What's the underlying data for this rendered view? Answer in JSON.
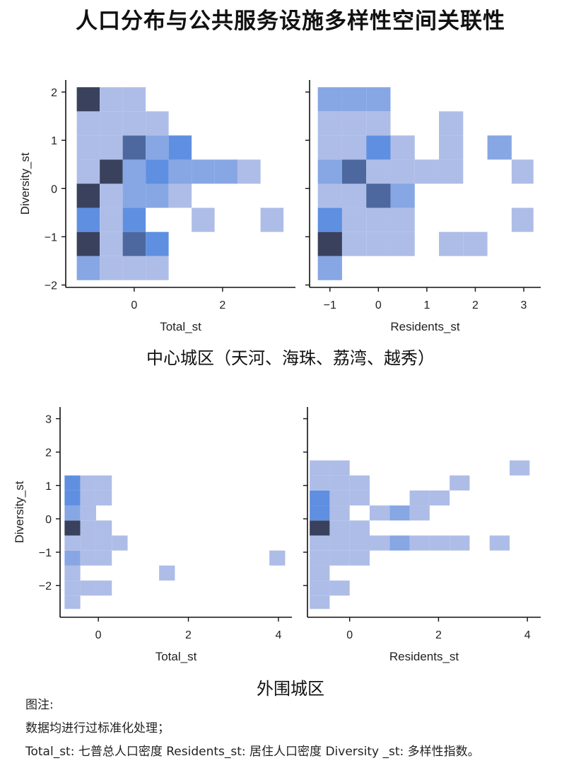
{
  "title": "人口分布与公共服务设施多样性空间关联性",
  "groups": [
    {
      "caption": "中心城区（天河、海珠、荔湾、越秀）"
    },
    {
      "caption": "外围城区"
    }
  ],
  "notes": {
    "heading": "图注:",
    "line1": "数据均进行过标准化处理；",
    "line2": "Total_st: 七普总人口密度   Residents_st: 居住人口密度   Diversity _st: 多样性指数。"
  },
  "colors": {
    "cmap_light": "#aebde7",
    "cmap_mid": "#5f8fe0",
    "cmap_dark": "#39415c",
    "axis": "#111111"
  },
  "chart_data": [
    {
      "type": "heatmap",
      "panel": "central-total",
      "xlabel": "Total_st",
      "ylabel": "Diversity_st",
      "xticks": [
        0,
        2
      ],
      "yticks": [
        -2,
        -1,
        0,
        1,
        2
      ],
      "xlim": [
        -1.55,
        3.65
      ],
      "ylim": [
        -2.05,
        2.25
      ],
      "x_edges": [
        -1.3,
        -0.78,
        -0.26,
        0.26,
        0.78,
        1.3,
        1.82,
        2.34,
        2.86,
        3.38
      ],
      "y_edges": [
        -1.9,
        -1.4,
        -0.9,
        -0.4,
        0.1,
        0.6,
        1.1,
        1.6,
        2.1
      ],
      "counts": [
        [
          2,
          1,
          1,
          1,
          0,
          0,
          0,
          0,
          0
        ],
        [
          5,
          1,
          4,
          3,
          0,
          0,
          0,
          0,
          0
        ],
        [
          3,
          1,
          3,
          0,
          0,
          1,
          0,
          0,
          1
        ],
        [
          5,
          1,
          2,
          2,
          1,
          0,
          0,
          0,
          0
        ],
        [
          1,
          5,
          2,
          3,
          2,
          2,
          2,
          1,
          0
        ],
        [
          1,
          1,
          4,
          2,
          3,
          0,
          0,
          0,
          0
        ],
        [
          1,
          1,
          1,
          1,
          0,
          0,
          0,
          0,
          0
        ],
        [
          5,
          1,
          1,
          0,
          0,
          0,
          0,
          0,
          0
        ]
      ]
    },
    {
      "type": "heatmap",
      "panel": "central-residents",
      "xlabel": "Residents_st",
      "ylabel": "",
      "xticks": [
        -1,
        0,
        1,
        2,
        3
      ],
      "yticks": [
        -2,
        -1,
        0,
        1,
        2
      ],
      "xlim": [
        -1.42,
        3.35
      ],
      "ylim": [
        -2.05,
        2.25
      ],
      "x_edges": [
        -1.25,
        -0.75,
        -0.25,
        0.25,
        0.75,
        1.25,
        1.75,
        2.25,
        2.75,
        3.2
      ],
      "y_edges": [
        -1.9,
        -1.4,
        -0.9,
        -0.4,
        0.1,
        0.6,
        1.1,
        1.6,
        2.1
      ],
      "counts": [
        [
          2,
          0,
          0,
          0,
          0,
          0,
          0,
          0,
          0
        ],
        [
          5,
          1,
          1,
          1,
          0,
          1,
          1,
          0,
          0
        ],
        [
          3,
          1,
          1,
          1,
          0,
          0,
          0,
          0,
          1
        ],
        [
          1,
          1,
          4,
          2,
          0,
          0,
          0,
          0,
          0
        ],
        [
          2,
          4,
          1,
          1,
          1,
          1,
          0,
          0,
          1
        ],
        [
          1,
          1,
          3,
          1,
          0,
          1,
          0,
          2,
          0
        ],
        [
          1,
          1,
          1,
          0,
          0,
          1,
          0,
          0,
          0
        ],
        [
          2,
          2,
          2,
          0,
          0,
          0,
          0,
          0,
          0
        ]
      ]
    },
    {
      "type": "heatmap",
      "panel": "outer-total",
      "xlabel": "Total_st",
      "ylabel": "Diversity_st",
      "xticks": [
        0,
        2,
        4
      ],
      "yticks": [
        -2,
        -1,
        0,
        1,
        2,
        3
      ],
      "xlim": [
        -0.85,
        4.3
      ],
      "ylim": [
        -2.95,
        3.35
      ],
      "x_edges": [
        -0.75,
        -0.4,
        -0.05,
        0.3,
        0.65,
        1.0,
        1.35,
        1.7,
        2.05,
        2.4,
        2.75,
        3.1,
        3.45,
        3.8,
        4.15
      ],
      "y_edges": [
        -2.7,
        -2.3,
        -1.85,
        -1.4,
        -0.95,
        -0.5,
        -0.05,
        0.4,
        0.85,
        1.3,
        1.75,
        2.2,
        2.65,
        3.1
      ],
      "counts": [
        [
          1,
          0,
          0,
          0,
          0,
          0,
          0,
          0,
          0,
          0,
          0,
          0,
          0,
          0
        ],
        [
          1,
          1,
          1,
          0,
          0,
          0,
          0,
          0,
          0,
          0,
          0,
          0,
          0,
          0
        ],
        [
          1,
          0,
          0,
          0,
          0,
          0,
          1,
          0,
          0,
          0,
          0,
          0,
          0,
          0
        ],
        [
          2,
          1,
          1,
          0,
          0,
          0,
          0,
          0,
          0,
          0,
          0,
          0,
          0,
          1
        ],
        [
          1,
          1,
          1,
          1,
          0,
          0,
          0,
          0,
          0,
          0,
          0,
          0,
          0,
          0
        ],
        [
          5,
          1,
          1,
          0,
          0,
          0,
          0,
          0,
          0,
          0,
          0,
          0,
          0,
          0
        ],
        [
          2,
          1,
          0,
          0,
          0,
          0,
          0,
          0,
          0,
          0,
          0,
          0,
          0,
          0
        ],
        [
          3,
          1,
          1,
          0,
          0,
          0,
          0,
          0,
          0,
          0,
          0,
          0,
          0,
          0
        ],
        [
          3,
          1,
          1,
          0,
          0,
          0,
          0,
          0,
          0,
          0,
          0,
          0,
          0,
          0
        ],
        [
          0,
          0,
          0,
          0,
          0,
          0,
          0,
          0,
          0,
          0,
          0,
          0,
          0,
          0
        ],
        [
          0,
          0,
          0,
          0,
          0,
          0,
          0,
          0,
          0,
          0,
          0,
          0,
          0,
          0
        ],
        [
          0,
          0,
          0,
          0,
          0,
          0,
          0,
          0,
          0,
          0,
          0,
          0,
          0,
          0
        ],
        [
          0,
          0,
          0,
          0,
          0,
          0,
          0,
          0,
          0,
          0,
          0,
          0,
          0,
          0
        ]
      ]
    },
    {
      "type": "heatmap",
      "panel": "outer-residents",
      "xlabel": "Residents_st",
      "ylabel": "",
      "xticks": [
        0,
        2,
        4
      ],
      "yticks": [
        -2,
        -1,
        0,
        1,
        2,
        3
      ],
      "xlim": [
        -0.95,
        4.3
      ],
      "ylim": [
        -2.95,
        3.35
      ],
      "x_edges": [
        -0.9,
        -0.45,
        0.0,
        0.45,
        0.9,
        1.35,
        1.8,
        2.25,
        2.7,
        3.15,
        3.6,
        4.05
      ],
      "y_edges": [
        -2.7,
        -2.3,
        -1.85,
        -1.4,
        -0.95,
        -0.5,
        -0.05,
        0.4,
        0.85,
        1.3,
        1.75,
        2.2,
        2.65,
        3.1
      ],
      "counts": [
        [
          1,
          0,
          0,
          0,
          0,
          0,
          0,
          0,
          0,
          0,
          0
        ],
        [
          1,
          1,
          0,
          0,
          0,
          0,
          0,
          0,
          0,
          0,
          0
        ],
        [
          1,
          0,
          0,
          0,
          0,
          0,
          0,
          0,
          0,
          0,
          0
        ],
        [
          1,
          1,
          1,
          0,
          0,
          0,
          0,
          0,
          0,
          0,
          0
        ],
        [
          1,
          1,
          1,
          1,
          2,
          1,
          1,
          1,
          0,
          1,
          0
        ],
        [
          5,
          1,
          1,
          0,
          0,
          0,
          0,
          0,
          0,
          0,
          0
        ],
        [
          3,
          1,
          0,
          1,
          2,
          1,
          0,
          0,
          0,
          0,
          0
        ],
        [
          3,
          1,
          1,
          0,
          0,
          1,
          1,
          0,
          0,
          0,
          0
        ],
        [
          1,
          1,
          1,
          0,
          0,
          0,
          0,
          1,
          0,
          0,
          0
        ],
        [
          1,
          1,
          0,
          0,
          0,
          0,
          0,
          0,
          0,
          0,
          1
        ],
        [
          0,
          0,
          0,
          0,
          0,
          0,
          0,
          0,
          0,
          0,
          0
        ],
        [
          0,
          0,
          0,
          0,
          0,
          0,
          0,
          0,
          0,
          0,
          0
        ],
        [
          0,
          0,
          0,
          0,
          0,
          0,
          0,
          0,
          0,
          0,
          0
        ]
      ]
    }
  ]
}
